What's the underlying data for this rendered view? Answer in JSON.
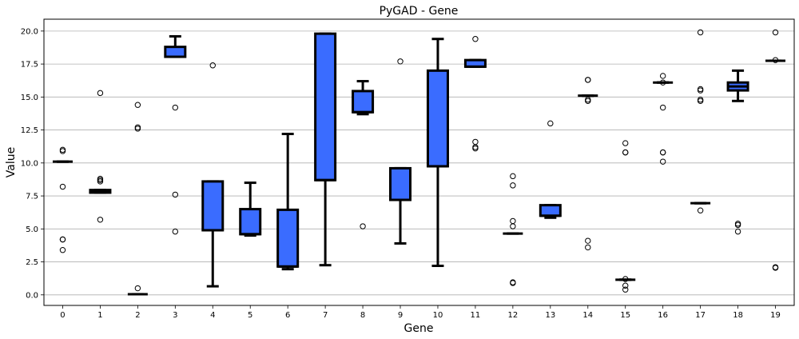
{
  "chart_data": {
    "type": "box",
    "title": "PyGAD - Gene",
    "xlabel": "Gene",
    "ylabel": "Value",
    "ylim": [
      -0.8,
      20.9
    ],
    "yticks": [
      "0.0",
      "2.5",
      "5.0",
      "7.5",
      "10.0",
      "12.5",
      "15.0",
      "17.5",
      "20.0"
    ],
    "ytick_values": [
      0,
      2.5,
      5,
      7.5,
      10,
      12.5,
      15,
      17.5,
      20
    ],
    "grid": "horizontal",
    "box_color": "#3a6cff",
    "edge_color": "#000000",
    "categories": [
      "0",
      "1",
      "2",
      "3",
      "4",
      "5",
      "6",
      "7",
      "8",
      "9",
      "10",
      "11",
      "12",
      "13",
      "14",
      "15",
      "16",
      "17",
      "18",
      "19"
    ],
    "boxes": [
      {
        "gene": "0",
        "q1": 10.1,
        "median": 10.1,
        "q3": 10.1,
        "whislo": 10.1,
        "whishi": 10.1,
        "fliers": [
          11.0,
          10.9,
          8.2,
          4.2,
          4.2,
          3.4
        ]
      },
      {
        "gene": "1",
        "q1": 7.75,
        "median": 7.85,
        "q3": 7.95,
        "whislo": 7.75,
        "whishi": 7.95,
        "fliers": [
          15.3,
          8.8,
          8.7,
          8.6,
          5.7
        ]
      },
      {
        "gene": "2",
        "q1": 0.05,
        "median": 0.05,
        "q3": 0.05,
        "whislo": 0.05,
        "whishi": 0.05,
        "fliers": [
          14.4,
          12.7,
          12.6,
          0.5
        ]
      },
      {
        "gene": "3",
        "q1": 18.05,
        "median": 18.05,
        "q3": 18.8,
        "whislo": 18.05,
        "whishi": 19.6,
        "fliers": [
          14.2,
          7.6,
          4.8
        ]
      },
      {
        "gene": "4",
        "q1": 4.9,
        "median": 4.9,
        "q3": 8.6,
        "whislo": 0.65,
        "whishi": 8.6,
        "fliers": [
          17.4
        ]
      },
      {
        "gene": "5",
        "q1": 4.6,
        "median": 4.6,
        "q3": 6.5,
        "whislo": 4.5,
        "whishi": 8.5,
        "fliers": []
      },
      {
        "gene": "6",
        "q1": 2.15,
        "median": 2.15,
        "q3": 6.45,
        "whislo": 1.95,
        "whishi": 12.2,
        "fliers": []
      },
      {
        "gene": "7",
        "q1": 8.7,
        "median": 8.7,
        "q3": 19.8,
        "whislo": 2.25,
        "whishi": 19.8,
        "fliers": []
      },
      {
        "gene": "8",
        "q1": 13.85,
        "median": 13.85,
        "q3": 15.45,
        "whislo": 13.7,
        "whishi": 16.2,
        "fliers": [
          5.2
        ]
      },
      {
        "gene": "9",
        "q1": 7.2,
        "median": 7.2,
        "q3": 9.6,
        "whislo": 3.9,
        "whishi": 9.6,
        "fliers": [
          17.7
        ]
      },
      {
        "gene": "10",
        "q1": 9.75,
        "median": 9.75,
        "q3": 17.0,
        "whislo": 2.2,
        "whishi": 19.4,
        "fliers": []
      },
      {
        "gene": "11",
        "q1": 17.3,
        "median": 17.3,
        "q3": 17.8,
        "whislo": 17.3,
        "whishi": 17.8,
        "fliers": [
          19.4,
          11.6,
          11.2,
          11.1
        ]
      },
      {
        "gene": "12",
        "q1": 4.65,
        "median": 4.65,
        "q3": 4.65,
        "whislo": 4.65,
        "whishi": 4.65,
        "fliers": [
          9.0,
          8.3,
          5.6,
          5.2,
          0.95,
          0.9
        ]
      },
      {
        "gene": "13",
        "q1": 6.0,
        "median": 6.0,
        "q3": 6.8,
        "whislo": 5.85,
        "whishi": 6.8,
        "fliers": [
          13.0
        ]
      },
      {
        "gene": "14",
        "q1": 15.1,
        "median": 15.1,
        "q3": 15.1,
        "whislo": 15.1,
        "whishi": 15.1,
        "fliers": [
          16.3,
          16.3,
          14.8,
          14.7,
          4.1,
          3.6
        ]
      },
      {
        "gene": "15",
        "q1": 1.15,
        "median": 1.15,
        "q3": 1.15,
        "whislo": 1.15,
        "whishi": 1.15,
        "fliers": [
          11.5,
          10.8,
          10.8,
          1.2,
          0.7,
          0.4
        ]
      },
      {
        "gene": "16",
        "q1": 16.1,
        "median": 16.1,
        "q3": 16.1,
        "whislo": 16.1,
        "whishi": 16.1,
        "fliers": [
          16.6,
          16.1,
          14.2,
          10.8,
          10.8,
          10.1
        ]
      },
      {
        "gene": "17",
        "q1": 6.95,
        "median": 6.95,
        "q3": 6.95,
        "whislo": 6.95,
        "whishi": 6.95,
        "fliers": [
          19.9,
          15.6,
          15.5,
          14.8,
          14.7,
          6.4
        ]
      },
      {
        "gene": "18",
        "q1": 15.5,
        "median": 15.8,
        "q3": 16.1,
        "whislo": 14.7,
        "whishi": 17.0,
        "fliers": [
          5.4,
          5.3,
          4.8
        ]
      },
      {
        "gene": "19",
        "q1": 17.75,
        "median": 17.75,
        "q3": 17.75,
        "whislo": 17.75,
        "whishi": 17.75,
        "fliers": [
          19.9,
          17.8,
          2.1,
          2.05
        ]
      }
    ]
  }
}
